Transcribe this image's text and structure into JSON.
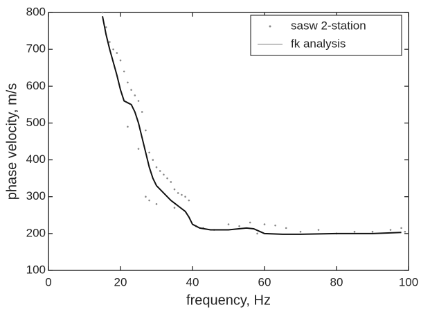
{
  "chart_data": {
    "type": "scatter",
    "xlabel": "frequency, Hz",
    "ylabel": "phase velocity, m/s",
    "xlim": [
      0,
      100
    ],
    "xticks": [
      0,
      20,
      40,
      60,
      80,
      100
    ],
    "ylim": [
      100,
      800
    ],
    "yticks": [
      100,
      200,
      300,
      400,
      500,
      600,
      700,
      800
    ],
    "legend": "upper right",
    "series": [
      {
        "name": "sasw 2-station",
        "kind": "scatter",
        "color": "#888888",
        "x": [
          15,
          16,
          17,
          18,
          19,
          20,
          21,
          22,
          23,
          24,
          25,
          26,
          27,
          28,
          29,
          30,
          31,
          32,
          33,
          34,
          35,
          36,
          37,
          38,
          39,
          22,
          25,
          27,
          28,
          30,
          35,
          41,
          43,
          46,
          50,
          53,
          56,
          58,
          60,
          63,
          66,
          70,
          75,
          80,
          85,
          90,
          95,
          98,
          99
        ],
        "values": [
          800,
          760,
          720,
          700,
          690,
          670,
          640,
          610,
          590,
          575,
          560,
          530,
          480,
          420,
          400,
          380,
          370,
          360,
          350,
          340,
          320,
          310,
          305,
          300,
          290,
          490,
          430,
          300,
          290,
          280,
          270,
          220,
          215,
          210,
          225,
          220,
          230,
          200,
          225,
          222,
          215,
          205,
          210,
          200,
          205,
          205,
          210,
          215,
          205
        ]
      },
      {
        "name": "fk analysis",
        "kind": "line",
        "color": "#111111",
        "x": [
          15,
          16,
          17,
          18,
          19,
          20,
          21,
          22,
          23,
          24,
          25,
          26,
          27,
          28,
          29,
          30,
          32,
          34,
          36,
          38,
          39,
          40,
          42,
          45,
          50,
          55,
          57,
          60,
          65,
          70,
          80,
          90,
          98
        ],
        "values": [
          790,
          740,
          700,
          665,
          630,
          590,
          560,
          555,
          550,
          530,
          500,
          460,
          420,
          380,
          350,
          330,
          310,
          290,
          275,
          260,
          245,
          225,
          215,
          210,
          210,
          215,
          213,
          200,
          198,
          198,
          200,
          200,
          203
        ]
      }
    ]
  }
}
